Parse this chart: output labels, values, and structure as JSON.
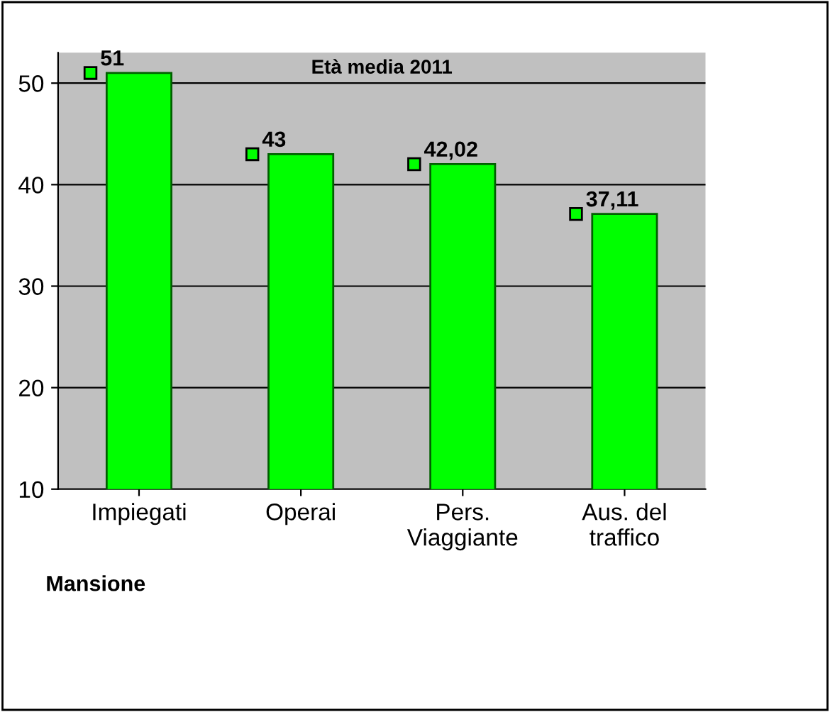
{
  "chart_data": {
    "type": "bar",
    "xlabel": "Mansione",
    "categories": [
      "Impiegati",
      "Operai",
      "Pers.\nViaggiante",
      "Aus. del\ntraffico"
    ],
    "series": [
      {
        "color": "#00ff00",
        "values": [
          51,
          43,
          42.02,
          37.11
        ]
      },
      {
        "type": "scatter",
        "name": "Età media 2011",
        "color": "#00ff00",
        "values": [
          51,
          43,
          42.02,
          37.11
        ],
        "value_labels": [
          "51",
          "43",
          "42,02",
          "37,11"
        ]
      }
    ],
    "marker": "square",
    "ylim": [
      10,
      53
    ],
    "yticks": [
      10,
      20,
      30,
      40,
      50
    ],
    "grid": "y",
    "legend": "top"
  }
}
